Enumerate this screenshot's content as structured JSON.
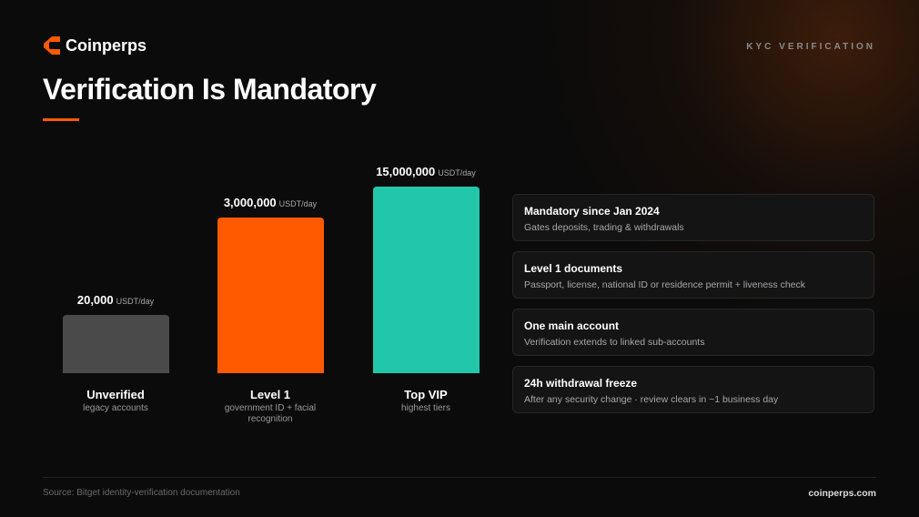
{
  "header": {
    "brand": "Coinperps",
    "tag": "KYC VERIFICATION",
    "title": "Verification Is Mandatory"
  },
  "chart_data": {
    "type": "bar",
    "categories": [
      "Unverified",
      "Level 1",
      "Top VIP"
    ],
    "category_notes": [
      "legacy accounts",
      "government ID + facial recognition",
      "highest tiers"
    ],
    "values": [
      20000,
      3000000,
      15000000
    ],
    "value_labels": [
      "20,000",
      "3,000,000",
      "15,000,000"
    ],
    "unit": "USDT/day",
    "colors": [
      "#4a4a4a",
      "#ff5a00",
      "#22c7a9"
    ],
    "log_scale": true,
    "ylim": [
      1000,
      15000000
    ]
  },
  "cards": [
    {
      "title": "Mandatory since Jan 2024",
      "text": "Gates deposits, trading & withdrawals"
    },
    {
      "title": "Level 1 documents",
      "text": "Passport, license, national ID or residence permit + liveness check"
    },
    {
      "title": "One main account",
      "text": "Verification extends to linked sub-accounts"
    },
    {
      "title": "24h withdrawal freeze",
      "text": "After any security change · review clears in ~1 business day"
    }
  ],
  "footer": {
    "source": "Source: Bitget identity-verification documentation",
    "site": "coinperps.com"
  }
}
